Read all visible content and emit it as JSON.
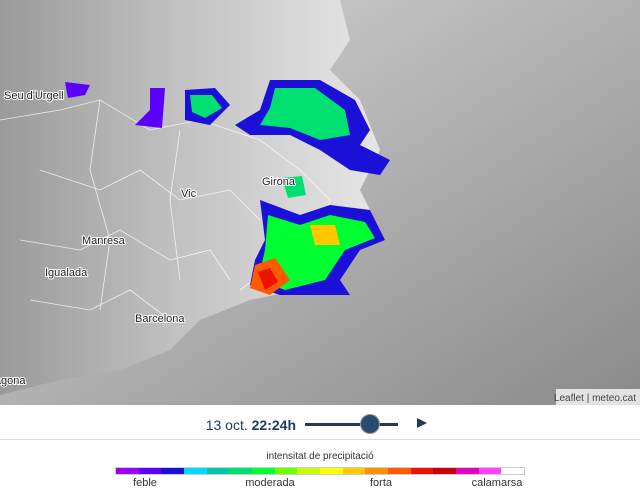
{
  "map": {
    "places": [
      {
        "label": "Seu d'Urgell"
      },
      {
        "label": "Vic"
      },
      {
        "label": "Girona"
      },
      {
        "label": "Manresa"
      },
      {
        "label": "Igualada"
      },
      {
        "label": "Barcelona"
      },
      {
        "label": "Tarragona"
      }
    ],
    "attribution": "Leaflet | meteo.cat"
  },
  "player": {
    "date": "13 oct.",
    "time": "22:24h"
  },
  "legend": {
    "title": "intensitat de precipitació",
    "labels": [
      "feble",
      "moderada",
      "forta",
      "calamarsa"
    ],
    "colors": [
      "#9c00f0",
      "#5a00ff",
      "#1a10d8",
      "#00d8ff",
      "#00c8a8",
      "#00e070",
      "#00ff30",
      "#70ff00",
      "#c8ff00",
      "#ffff00",
      "#ffc800",
      "#ff9000",
      "#ff5a00",
      "#f01000",
      "#c80000",
      "#e800c0",
      "#ff40ff",
      "#ffffff"
    ]
  }
}
